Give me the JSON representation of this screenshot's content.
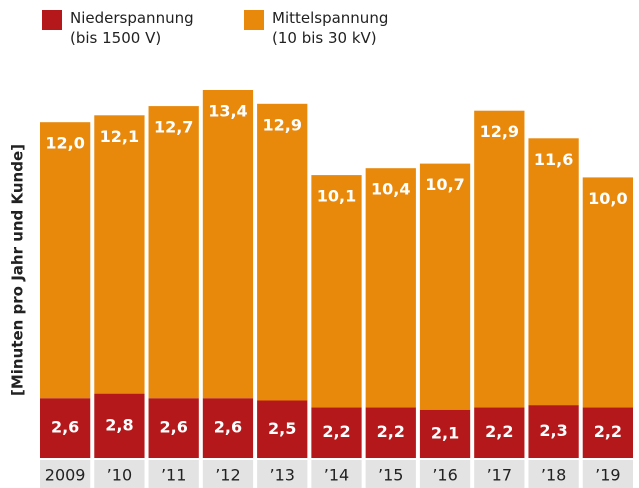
{
  "chart_data": {
    "type": "stacked_bar",
    "y_label": "[Minuten pro Jahr und Kunde]",
    "categories": [
      "2009",
      "’10",
      "’11",
      "’12",
      "’13",
      "’14",
      "’15",
      "’16",
      "’17",
      "’18",
      "’19"
    ],
    "series": [
      {
        "name": "Niederspannung (bis 1500 V)",
        "color": "#b5181b",
        "values": [
          2.6,
          2.8,
          2.6,
          2.6,
          2.5,
          2.2,
          2.2,
          2.1,
          2.2,
          2.3,
          2.2
        ],
        "value_labels": [
          "2,6",
          "2,8",
          "2,6",
          "2,6",
          "2,5",
          "2,2",
          "2,2",
          "2,1",
          "2,2",
          "2,3",
          "2,2"
        ]
      },
      {
        "name": "Mittelspannung (10 bis 30 kV)",
        "color": "#e8890c",
        "values": [
          12.0,
          12.1,
          12.7,
          13.4,
          12.9,
          10.1,
          10.4,
          10.7,
          12.9,
          11.6,
          10.0
        ],
        "value_labels": [
          "12,0",
          "12,1",
          "12,7",
          "13,4",
          "12,9",
          "10,1",
          "10,4",
          "10,7",
          "12,9",
          "11,6",
          "10,0"
        ]
      }
    ],
    "ylim": [
      0,
      17
    ]
  }
}
